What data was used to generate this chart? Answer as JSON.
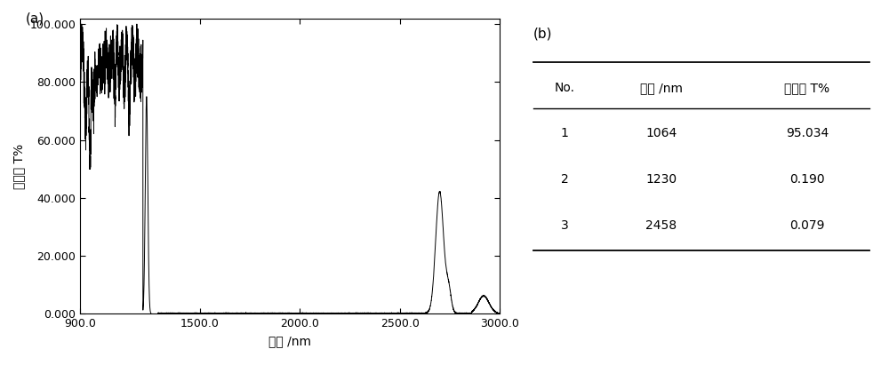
{
  "xlabel": "波长 /nm",
  "ylabel": "透过率 T%",
  "label_a": "(a)",
  "label_b": "(b)",
  "xmin": 900,
  "xmax": 3000,
  "ymin": 0,
  "ymax": 100,
  "yticks": [
    0.0,
    20.0,
    40.0,
    60.0,
    80.0,
    100.0
  ],
  "ytick_labels": [
    "0.000",
    "20.000",
    "40.000",
    "60.000",
    "80.000",
    "100.000"
  ],
  "xticks": [
    900.0,
    1500.0,
    2000.0,
    2500.0,
    3000.0
  ],
  "xtick_labels": [
    "900.0",
    "1500.0",
    "2000.0",
    "2500.0",
    "3000.0"
  ],
  "table_headers": [
    "No.",
    "波长 /nm",
    "透射率 T%"
  ],
  "table_rows": [
    [
      "1",
      "1064",
      "95.034"
    ],
    [
      "2",
      "1230",
      "0.190"
    ],
    [
      "3",
      "2458",
      "0.079"
    ]
  ],
  "line_color": "#000000",
  "background_color": "#ffffff",
  "font_size": 10,
  "tick_font_size": 9
}
